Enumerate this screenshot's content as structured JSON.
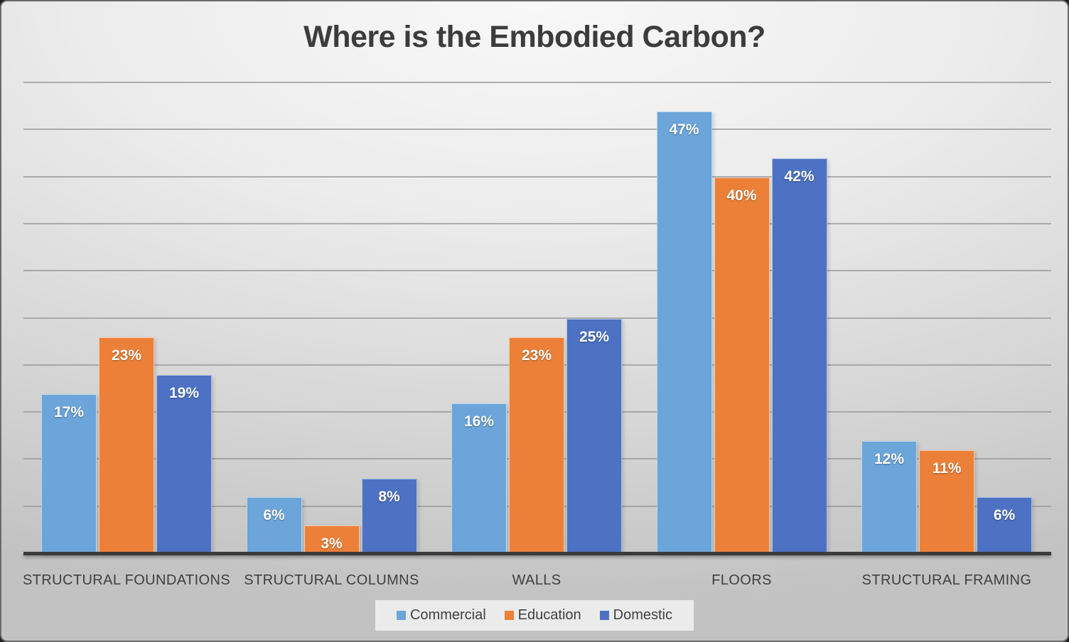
{
  "title": "Where is the Embodied Carbon?",
  "chart_data": {
    "type": "bar",
    "title": "Where is the Embodied Carbon?",
    "categories": [
      "STRUCTURAL FOUNDATIONS",
      "STRUCTURAL COLUMNS",
      "WALLS",
      "FLOORS",
      "STRUCTURAL FRAMING"
    ],
    "series": [
      {
        "name": "Commercial",
        "color": "#6BA5DA",
        "values": [
          17,
          6,
          16,
          47,
          12
        ]
      },
      {
        "name": "Education",
        "color": "#EC8038",
        "values": [
          23,
          3,
          23,
          40,
          11
        ]
      },
      {
        "name": "Domestic",
        "color": "#4D72C4",
        "values": [
          19,
          8,
          25,
          42,
          6
        ]
      }
    ],
    "value_suffix": "%",
    "data_labels": "inside-top, white bold",
    "xlabel": "",
    "ylabel": "",
    "y_axis_labels_visible": false,
    "ylim": [
      0,
      50
    ],
    "gridline_step": 5,
    "grid": true,
    "legend_position": "bottom"
  }
}
